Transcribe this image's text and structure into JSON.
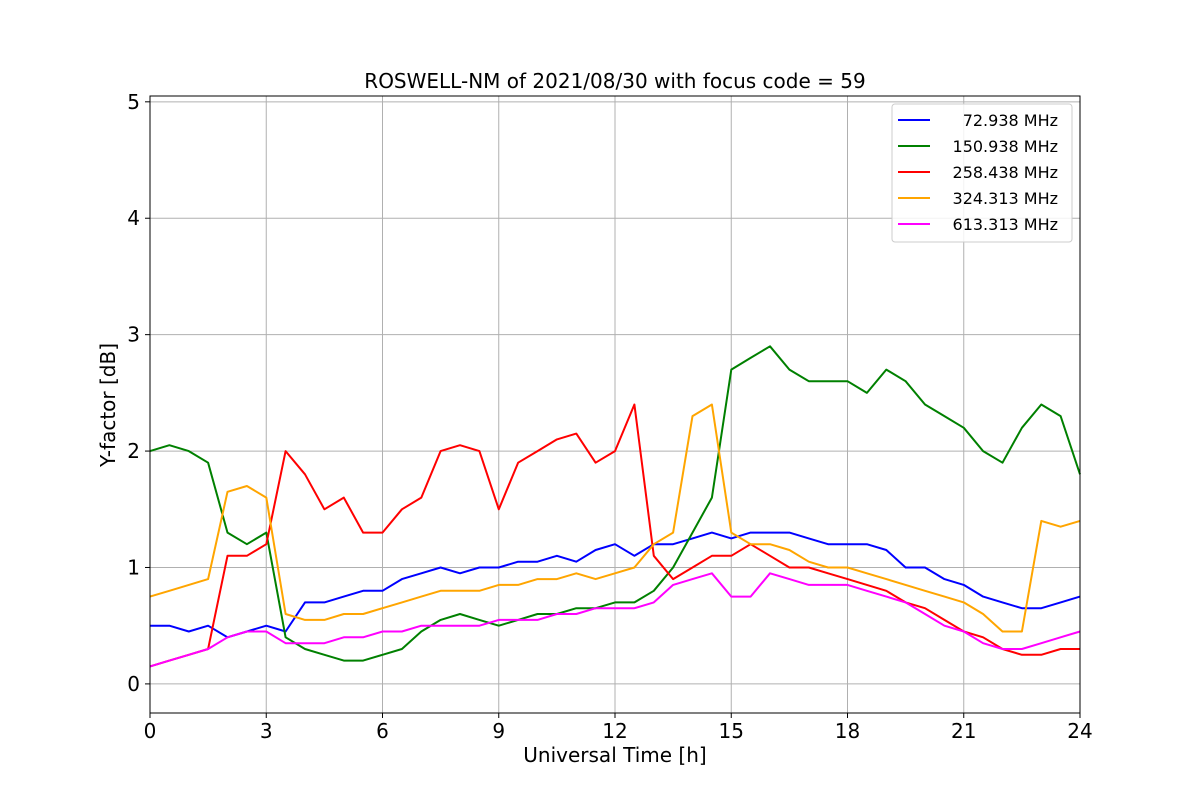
{
  "chart_data": {
    "type": "line",
    "title": "ROSWELL-NM of 2021/08/30 with focus code = 59",
    "xlabel": "Universal Time [h]",
    "ylabel": "Y-factor [dB]",
    "xlim": [
      0,
      24
    ],
    "ylim": [
      -0.25,
      5.05
    ],
    "xticks": [
      "0",
      "3",
      "6",
      "9",
      "12",
      "15",
      "18",
      "21",
      "24"
    ],
    "yticks": [
      "0",
      "1",
      "2",
      "3",
      "4",
      "5"
    ],
    "grid": true,
    "legend_position": "top-right",
    "series": [
      {
        "name": "72.938 MHz",
        "color": "#0000ff",
        "x": [
          0,
          0.5,
          1,
          1.5,
          2,
          2.5,
          3,
          3.5,
          4,
          4.5,
          5,
          5.5,
          6,
          6.5,
          7,
          7.5,
          8,
          8.5,
          9,
          9.5,
          10,
          10.5,
          11,
          11.5,
          12,
          12.5,
          13,
          13.5,
          14,
          14.5,
          15,
          15.5,
          16,
          16.5,
          17,
          17.5,
          18,
          18.5,
          19,
          19.5,
          20,
          20.5,
          21,
          21.5,
          22,
          22.5,
          23,
          23.5,
          24
        ],
        "y": [
          0.5,
          0.5,
          0.45,
          0.5,
          0.4,
          0.45,
          0.5,
          0.45,
          0.7,
          0.7,
          0.75,
          0.8,
          0.8,
          0.9,
          0.95,
          1.0,
          0.95,
          1.0,
          1.0,
          1.05,
          1.05,
          1.1,
          1.05,
          1.15,
          1.2,
          1.1,
          1.2,
          1.2,
          1.25,
          1.3,
          1.25,
          1.3,
          1.3,
          1.3,
          1.25,
          1.2,
          1.2,
          1.2,
          1.15,
          1.0,
          1.0,
          0.9,
          0.85,
          0.75,
          0.7,
          0.65,
          0.65,
          0.7,
          0.75
        ]
      },
      {
        "name": "150.938 MHz",
        "color": "#008000",
        "x": [
          0,
          0.5,
          1,
          1.5,
          2,
          2.5,
          3,
          3.5,
          4,
          4.5,
          5,
          5.5,
          6,
          6.5,
          7,
          7.5,
          8,
          8.5,
          9,
          9.5,
          10,
          10.5,
          11,
          11.5,
          12,
          12.5,
          13,
          13.5,
          14,
          14.5,
          15,
          15.5,
          16,
          16.5,
          17,
          17.5,
          18,
          18.5,
          19,
          19.5,
          20,
          20.5,
          21,
          21.5,
          22,
          22.5,
          23,
          23.5,
          24
        ],
        "y": [
          2.0,
          2.05,
          2.0,
          1.9,
          1.3,
          1.2,
          1.3,
          0.4,
          0.3,
          0.25,
          0.2,
          0.2,
          0.25,
          0.3,
          0.45,
          0.55,
          0.6,
          0.55,
          0.5,
          0.55,
          0.6,
          0.6,
          0.65,
          0.65,
          0.7,
          0.7,
          0.8,
          1.0,
          1.3,
          1.6,
          2.7,
          2.8,
          2.9,
          2.7,
          2.6,
          2.6,
          2.6,
          2.5,
          2.7,
          2.6,
          2.4,
          2.3,
          2.2,
          2.0,
          1.9,
          2.2,
          2.4,
          2.3,
          1.8
        ]
      },
      {
        "name": "258.438 MHz",
        "color": "#ff0000",
        "x": [
          0,
          0.5,
          1,
          1.5,
          2,
          2.5,
          3,
          3.5,
          4,
          4.5,
          5,
          5.5,
          6,
          6.5,
          7,
          7.5,
          8,
          8.5,
          9,
          9.5,
          10,
          10.5,
          11,
          11.5,
          12,
          12.5,
          13,
          13.5,
          14,
          14.5,
          15,
          15.5,
          16,
          16.5,
          17,
          17.5,
          18,
          18.5,
          19,
          19.5,
          20,
          20.5,
          21,
          21.5,
          22,
          22.5,
          23,
          23.5,
          24
        ],
        "y": [
          0.15,
          0.2,
          0.25,
          0.3,
          1.1,
          1.1,
          1.2,
          2.0,
          1.8,
          1.5,
          1.6,
          1.3,
          1.3,
          1.5,
          1.6,
          2.0,
          2.05,
          2.0,
          1.5,
          1.9,
          2.0,
          2.1,
          2.15,
          1.9,
          2.0,
          2.4,
          1.1,
          0.9,
          1.0,
          1.1,
          1.1,
          1.2,
          1.1,
          1.0,
          1.0,
          0.95,
          0.9,
          0.85,
          0.8,
          0.7,
          0.65,
          0.55,
          0.45,
          0.4,
          0.3,
          0.25,
          0.25,
          0.3,
          0.3
        ]
      },
      {
        "name": "324.313 MHz",
        "color": "#ffa500",
        "x": [
          0,
          0.5,
          1,
          1.5,
          2,
          2.5,
          3,
          3.5,
          4,
          4.5,
          5,
          5.5,
          6,
          6.5,
          7,
          7.5,
          8,
          8.5,
          9,
          9.5,
          10,
          10.5,
          11,
          11.5,
          12,
          12.5,
          13,
          13.5,
          14,
          14.5,
          15,
          15.5,
          16,
          16.5,
          17,
          17.5,
          18,
          18.5,
          19,
          19.5,
          20,
          20.5,
          21,
          21.5,
          22,
          22.5,
          23,
          23.5,
          24
        ],
        "y": [
          0.75,
          0.8,
          0.85,
          0.9,
          1.65,
          1.7,
          1.6,
          0.6,
          0.55,
          0.55,
          0.6,
          0.6,
          0.65,
          0.7,
          0.75,
          0.8,
          0.8,
          0.8,
          0.85,
          0.85,
          0.9,
          0.9,
          0.95,
          0.9,
          0.95,
          1.0,
          1.2,
          1.3,
          2.3,
          2.4,
          1.3,
          1.2,
          1.2,
          1.15,
          1.05,
          1.0,
          1.0,
          0.95,
          0.9,
          0.85,
          0.8,
          0.75,
          0.7,
          0.6,
          0.45,
          0.45,
          1.4,
          1.35,
          1.4
        ]
      },
      {
        "name": "613.313 MHz",
        "color": "#ff00ff",
        "x": [
          0,
          0.5,
          1,
          1.5,
          2,
          2.5,
          3,
          3.5,
          4,
          4.5,
          5,
          5.5,
          6,
          6.5,
          7,
          7.5,
          8,
          8.5,
          9,
          9.5,
          10,
          10.5,
          11,
          11.5,
          12,
          12.5,
          13,
          13.5,
          14,
          14.5,
          15,
          15.5,
          16,
          16.5,
          17,
          17.5,
          18,
          18.5,
          19,
          19.5,
          20,
          20.5,
          21,
          21.5,
          22,
          22.5,
          23,
          23.5,
          24
        ],
        "y": [
          0.15,
          0.2,
          0.25,
          0.3,
          0.4,
          0.45,
          0.45,
          0.35,
          0.35,
          0.35,
          0.4,
          0.4,
          0.45,
          0.45,
          0.5,
          0.5,
          0.5,
          0.5,
          0.55,
          0.55,
          0.55,
          0.6,
          0.6,
          0.65,
          0.65,
          0.65,
          0.7,
          0.85,
          0.9,
          0.95,
          0.75,
          0.75,
          0.95,
          0.9,
          0.85,
          0.85,
          0.85,
          0.8,
          0.75,
          0.7,
          0.6,
          0.5,
          0.45,
          0.35,
          0.3,
          0.3,
          0.35,
          0.4,
          0.45
        ]
      }
    ]
  }
}
